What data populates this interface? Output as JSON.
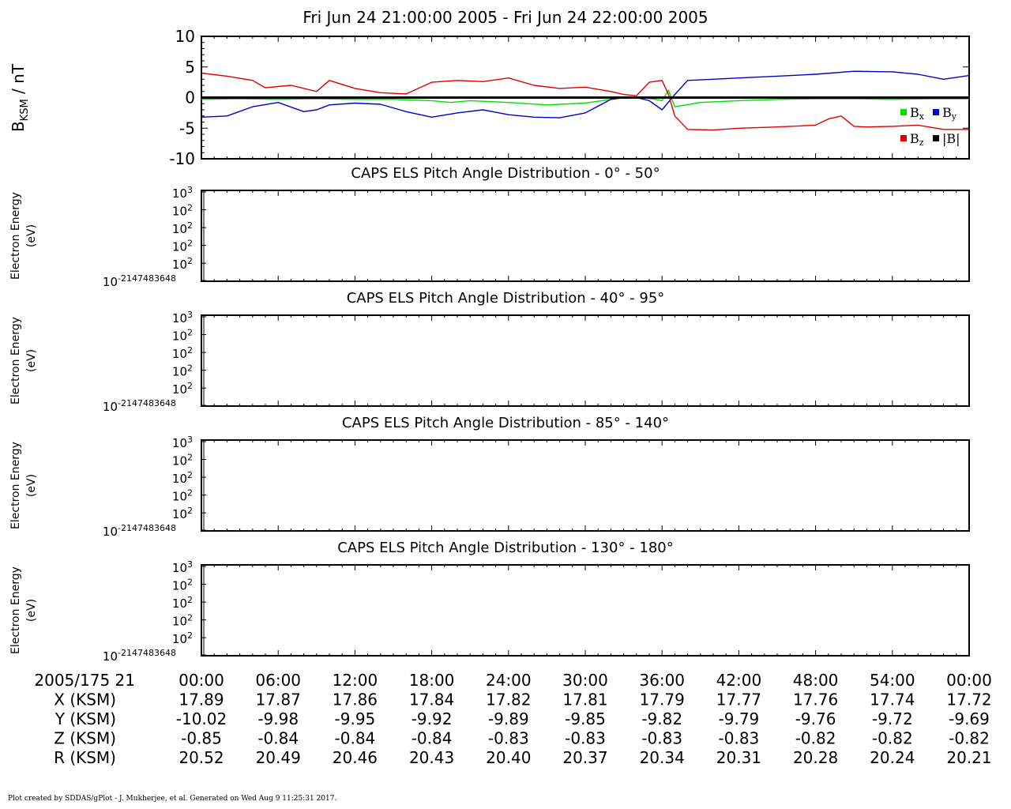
{
  "title": "Fri Jun 24 21:00:00 2005 - Fri Jun 24 22:00:00 2005",
  "footer": "Plot created by SDDAS/gPlot - J. Mukherjee, et al.  Generated on Wed Aug 9 11:25:31 2017.",
  "colors": {
    "bx": "#00e000",
    "by": "#0000cc",
    "bz": "#e00000",
    "b": "#000000"
  },
  "chart_data": [
    {
      "type": "line",
      "title": "",
      "ylabel": "B_KSM / nT",
      "ylim": [
        -10,
        10
      ],
      "yticks": [
        "10",
        "5",
        "0",
        "-5",
        "-10"
      ],
      "xlim": [
        0,
        60
      ],
      "x_unit": "minutes after 2005/175 21:00",
      "legend": [
        {
          "key": "bx",
          "label": "B",
          "sub": "x"
        },
        {
          "key": "by",
          "label": "B",
          "sub": "y"
        },
        {
          "key": "bz",
          "label": "B",
          "sub": "z"
        },
        {
          "key": "b",
          "label": "|B|",
          "sub": ""
        }
      ],
      "legend_position": "bottom-right",
      "series": [
        {
          "key": "bx",
          "x": [
            0,
            3,
            6,
            9,
            12,
            15,
            18,
            19.5,
            21,
            24,
            27,
            30,
            33,
            34.5,
            35.5,
            36,
            36.5,
            37,
            39,
            42,
            45,
            48,
            51,
            54,
            57,
            60
          ],
          "y": [
            -0.3,
            -0.2,
            -0.3,
            -0.2,
            -0.3,
            -0.3,
            -0.5,
            -0.8,
            -0.5,
            -0.8,
            -1.2,
            -0.9,
            0,
            0,
            -0.3,
            -0.5,
            1.2,
            -1.5,
            -0.8,
            -0.5,
            -0.3,
            -0.2,
            -0.2,
            -0.3,
            -0.2,
            -0.2
          ]
        },
        {
          "key": "by",
          "x": [
            0,
            2,
            4,
            6,
            8,
            9,
            10,
            12,
            14,
            16,
            18,
            20,
            22,
            24,
            26,
            28,
            30,
            32,
            33,
            34,
            35,
            36,
            37,
            38,
            40,
            42,
            45,
            48,
            51,
            54,
            56,
            58,
            60
          ],
          "y": [
            -3.2,
            -3.0,
            -1.5,
            -0.8,
            -2.3,
            -2.0,
            -1.2,
            -0.9,
            -1.1,
            -2.3,
            -3.2,
            -2.5,
            -2.0,
            -2.8,
            -3.2,
            -3.3,
            -2.5,
            -0.3,
            0,
            0,
            -0.5,
            -2.0,
            0.5,
            2.8,
            3.0,
            3.2,
            3.5,
            3.8,
            4.3,
            4.2,
            3.8,
            3.0,
            3.6
          ]
        },
        {
          "key": "bz",
          "x": [
            0,
            2,
            4,
            5,
            6,
            7,
            9,
            10,
            12,
            14,
            16,
            18,
            20,
            22,
            24,
            26,
            28,
            30,
            32,
            33,
            34,
            35,
            36,
            36.5,
            37,
            38,
            40,
            42,
            45,
            48,
            49,
            50,
            51,
            52,
            54,
            56,
            58,
            60
          ],
          "y": [
            4.0,
            3.5,
            2.8,
            1.6,
            1.8,
            2.0,
            1.0,
            2.8,
            1.5,
            0.8,
            0.6,
            2.5,
            2.8,
            2.6,
            3.2,
            2.0,
            1.5,
            1.7,
            1.0,
            0.5,
            0.3,
            2.5,
            2.8,
            0.5,
            -3.0,
            -5.2,
            -5.3,
            -5.0,
            -4.8,
            -4.5,
            -3.5,
            -3.0,
            -4.7,
            -4.8,
            -4.7,
            -4.5,
            -5.2,
            -5.2
          ]
        },
        {
          "key": "b",
          "x": [
            0,
            60
          ],
          "y": [
            0,
            0
          ]
        }
      ]
    },
    {
      "type": "heatmap",
      "title": "CAPS ELS Pitch Angle Distribution - 0° - 50°",
      "ylabel": "Electron Energy",
      "yunit": "(eV)",
      "ylim": [
        "10^-2147483648",
        "10^3"
      ],
      "yticks": [
        "10",
        "10",
        "10",
        "10",
        "10",
        "10"
      ],
      "yexp": [
        "3",
        "2",
        "2",
        "2",
        "2",
        "-2147483648"
      ]
    },
    {
      "type": "heatmap",
      "title": "CAPS ELS Pitch Angle Distribution - 40° - 95°",
      "ylabel": "Electron Energy",
      "yunit": "(eV)",
      "ylim": [
        "10^-2147483648",
        "10^3"
      ],
      "yticks": [
        "10",
        "10",
        "10",
        "10",
        "10",
        "10"
      ],
      "yexp": [
        "3",
        "2",
        "2",
        "2",
        "2",
        "-2147483648"
      ]
    },
    {
      "type": "heatmap",
      "title": "CAPS ELS Pitch Angle Distribution - 85° - 140°",
      "ylabel": "Electron Energy",
      "yunit": "(eV)",
      "ylim": [
        "10^-2147483648",
        "10^3"
      ],
      "yticks": [
        "10",
        "10",
        "10",
        "10",
        "10",
        "10"
      ],
      "yexp": [
        "3",
        "2",
        "2",
        "2",
        "2",
        "-2147483648"
      ]
    },
    {
      "type": "heatmap",
      "title": "CAPS ELS Pitch Angle Distribution - 130° - 180°",
      "ylabel": "Electron Energy",
      "yunit": "(eV)",
      "ylim": [
        "10^-2147483648",
        "10^3"
      ],
      "yticks": [
        "10",
        "10",
        "10",
        "10",
        "10",
        "10"
      ],
      "yexp": [
        "3",
        "2",
        "2",
        "2",
        "2",
        "-2147483648"
      ]
    }
  ],
  "ephemeris": {
    "rows": [
      {
        "label": "2005/175 21",
        "values": [
          "00:00",
          "06:00",
          "12:00",
          "18:00",
          "24:00",
          "30:00",
          "36:00",
          "42:00",
          "48:00",
          "54:00",
          "00:00"
        ]
      },
      {
        "label": "X (KSM)",
        "values": [
          "17.89",
          "17.87",
          "17.86",
          "17.84",
          "17.82",
          "17.81",
          "17.79",
          "17.77",
          "17.76",
          "17.74",
          "17.72"
        ]
      },
      {
        "label": "Y (KSM)",
        "values": [
          "-10.02",
          "-9.98",
          "-9.95",
          "-9.92",
          "-9.89",
          "-9.85",
          "-9.82",
          "-9.79",
          "-9.76",
          "-9.72",
          "-9.69"
        ]
      },
      {
        "label": "Z (KSM)",
        "values": [
          "-0.85",
          "-0.84",
          "-0.84",
          "-0.84",
          "-0.83",
          "-0.83",
          "-0.83",
          "-0.83",
          "-0.82",
          "-0.82",
          "-0.82"
        ]
      },
      {
        "label": "R (KSM)",
        "values": [
          "20.52",
          "20.49",
          "20.46",
          "20.43",
          "20.40",
          "20.37",
          "20.34",
          "20.31",
          "20.28",
          "20.24",
          "20.21"
        ]
      }
    ]
  }
}
